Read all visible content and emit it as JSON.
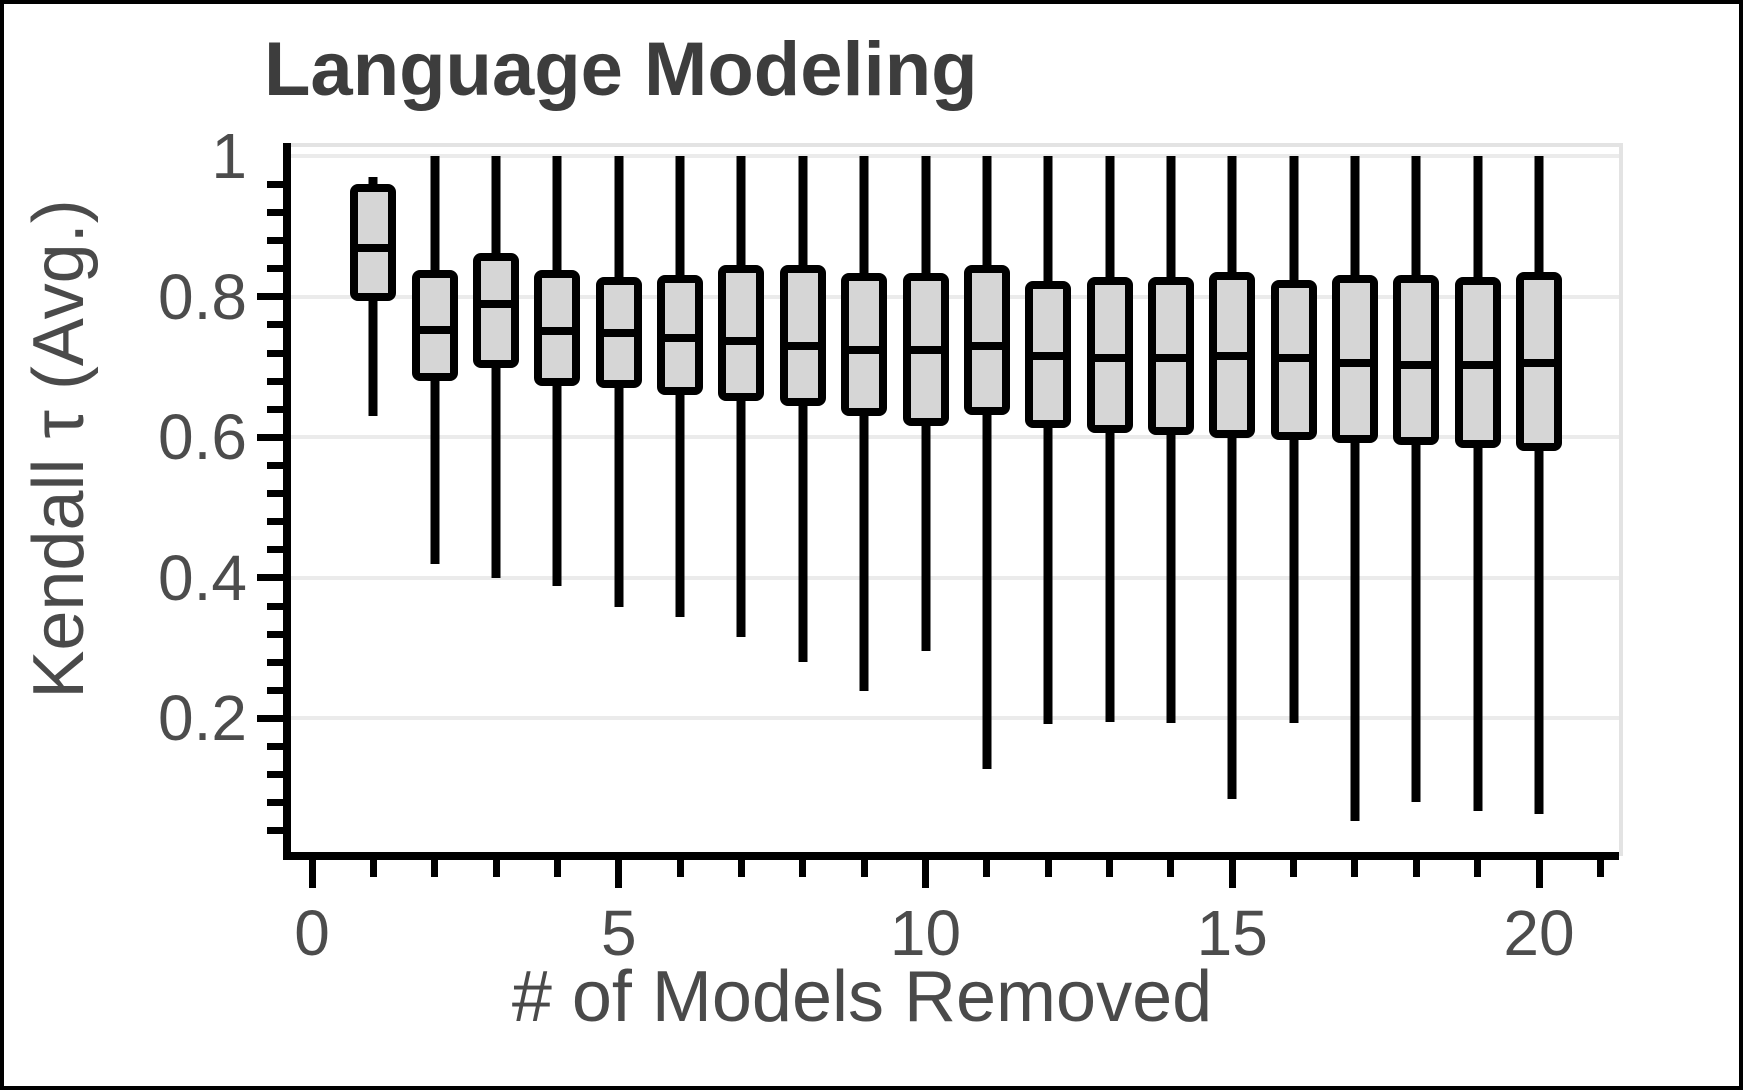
{
  "chart_data": {
    "type": "box",
    "title": "Language Modeling",
    "xlabel": "# of Models Removed",
    "ylabel": "Kendall τ (Avg.)",
    "xlim": [
      0,
      21.3
    ],
    "ylim": [
      0,
      1.01
    ],
    "grid": "horizontal major gridlines at 0.2 intervals",
    "x_major_ticks": [
      0,
      5,
      10,
      15,
      20
    ],
    "x_tick_labels": [
      "0",
      "5",
      "10",
      "15",
      "20"
    ],
    "x_minor_tick_step": 1,
    "x_minor_tick_max": 21,
    "y_major_ticks": [
      0.2,
      0.4,
      0.6,
      0.8,
      1.0
    ],
    "y_tick_labels": [
      "0.2",
      "0.4",
      "0.6",
      "0.8",
      "1"
    ],
    "y_minor_tick_step": 0.04,
    "box_fill": "#d6d6d6",
    "box_stroke": "#000000",
    "grid_color": "#ebebeb",
    "axis_text_color": "#4c4c4c",
    "title_color": "#3d3d3d",
    "series": [
      {
        "x": 1,
        "low": 0.63,
        "q1": 0.8,
        "median": 0.875,
        "q3": 0.955,
        "high": 0.97
      },
      {
        "x": 2,
        "low": 0.42,
        "q1": 0.686,
        "median": 0.758,
        "q3": 0.833,
        "high": 1.0
      },
      {
        "x": 3,
        "low": 0.4,
        "q1": 0.705,
        "median": 0.795,
        "q3": 0.856,
        "high": 1.0
      },
      {
        "x": 4,
        "low": 0.389,
        "q1": 0.679,
        "median": 0.757,
        "q3": 0.833,
        "high": 1.0
      },
      {
        "x": 5,
        "low": 0.359,
        "q1": 0.676,
        "median": 0.754,
        "q3": 0.822,
        "high": 1.0
      },
      {
        "x": 6,
        "low": 0.344,
        "q1": 0.666,
        "median": 0.747,
        "q3": 0.826,
        "high": 1.0
      },
      {
        "x": 7,
        "low": 0.316,
        "q1": 0.657,
        "median": 0.743,
        "q3": 0.84,
        "high": 1.0
      },
      {
        "x": 8,
        "low": 0.28,
        "q1": 0.65,
        "median": 0.735,
        "q3": 0.84,
        "high": 1.0
      },
      {
        "x": 9,
        "low": 0.239,
        "q1": 0.636,
        "median": 0.73,
        "q3": 0.828,
        "high": 1.0
      },
      {
        "x": 10,
        "low": 0.296,
        "q1": 0.622,
        "median": 0.73,
        "q3": 0.828,
        "high": 1.0
      },
      {
        "x": 11,
        "low": 0.128,
        "q1": 0.638,
        "median": 0.735,
        "q3": 0.84,
        "high": 1.0
      },
      {
        "x": 12,
        "low": 0.192,
        "q1": 0.619,
        "median": 0.722,
        "q3": 0.817,
        "high": 1.0
      },
      {
        "x": 13,
        "low": 0.195,
        "q1": 0.612,
        "median": 0.719,
        "q3": 0.823,
        "high": 1.0
      },
      {
        "x": 14,
        "low": 0.193,
        "q1": 0.609,
        "median": 0.719,
        "q3": 0.823,
        "high": 1.0
      },
      {
        "x": 15,
        "low": 0.085,
        "q1": 0.605,
        "median": 0.722,
        "q3": 0.83,
        "high": 1.0
      },
      {
        "x": 16,
        "low": 0.194,
        "q1": 0.602,
        "median": 0.719,
        "q3": 0.818,
        "high": 1.0
      },
      {
        "x": 17,
        "low": 0.054,
        "q1": 0.598,
        "median": 0.712,
        "q3": 0.826,
        "high": 1.0
      },
      {
        "x": 18,
        "low": 0.081,
        "q1": 0.595,
        "median": 0.709,
        "q3": 0.826,
        "high": 1.0
      },
      {
        "x": 19,
        "low": 0.068,
        "q1": 0.591,
        "median": 0.709,
        "q3": 0.823,
        "high": 1.0
      },
      {
        "x": 20,
        "low": 0.064,
        "q1": 0.586,
        "median": 0.712,
        "q3": 0.83,
        "high": 1.0
      }
    ]
  }
}
